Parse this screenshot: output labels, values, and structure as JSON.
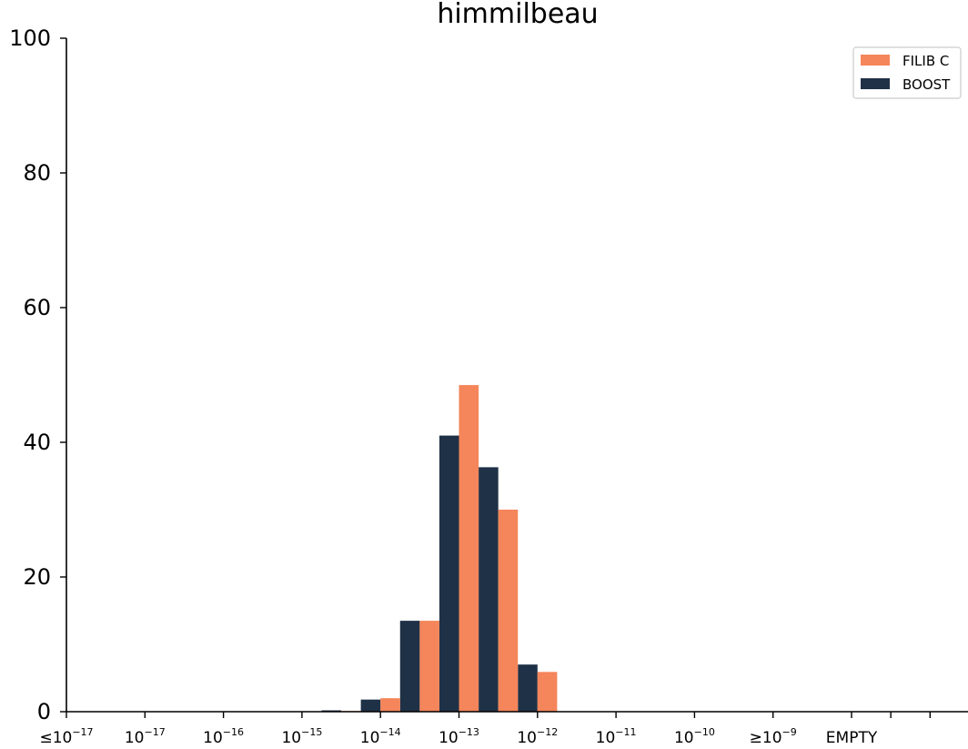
{
  "chart_data": {
    "type": "bar",
    "title": "himmilbeau",
    "xlabel": "",
    "ylabel": "",
    "ylim": [
      0,
      100
    ],
    "yticks": [
      0,
      20,
      40,
      60,
      80,
      100
    ],
    "grid": false,
    "legend_position": "top-right",
    "categories": [
      {
        "prefix": "≤",
        "base": "10",
        "exp": "−17"
      },
      {
        "prefix": "",
        "base": "10",
        "exp": "−17"
      },
      {
        "prefix": "",
        "base": "10",
        "exp": "−16"
      },
      {
        "prefix": "",
        "base": "10",
        "exp": "−15"
      },
      {
        "prefix": "",
        "base": "10",
        "exp": "−14"
      },
      {
        "prefix": "",
        "base": "10",
        "exp": "−13"
      },
      {
        "prefix": "",
        "base": "10",
        "exp": "−12"
      },
      {
        "prefix": "",
        "base": "10",
        "exp": "−11"
      },
      {
        "prefix": "",
        "base": "10",
        "exp": "−10"
      },
      {
        "prefix": "≥",
        "base": "10",
        "exp": "−9"
      },
      {
        "prefix": "",
        "base": "EMPTY",
        "exp": ""
      }
    ],
    "bin_positions": [
      0,
      1,
      2,
      3,
      4,
      5,
      6,
      7,
      8,
      9,
      10,
      10.5,
      11
    ],
    "series": [
      {
        "name": "FILIB C",
        "color": "#f5855a",
        "bars": [
          {
            "x": 3.5,
            "value": 0.1
          },
          {
            "x": 4.0,
            "value": 2.0
          },
          {
            "x": 4.5,
            "value": 13.5
          },
          {
            "x": 5.0,
            "value": 48.5
          },
          {
            "x": 5.5,
            "value": 30.0
          },
          {
            "x": 6.0,
            "value": 5.9
          }
        ]
      },
      {
        "name": "BOOST",
        "color": "#1f3146",
        "bars": [
          {
            "x": 3.25,
            "value": 0.2
          },
          {
            "x": 3.75,
            "value": 1.8
          },
          {
            "x": 4.25,
            "value": 13.5
          },
          {
            "x": 4.75,
            "value": 41.0
          },
          {
            "x": 5.25,
            "value": 36.3
          },
          {
            "x": 5.75,
            "value": 7.0
          }
        ]
      }
    ]
  }
}
